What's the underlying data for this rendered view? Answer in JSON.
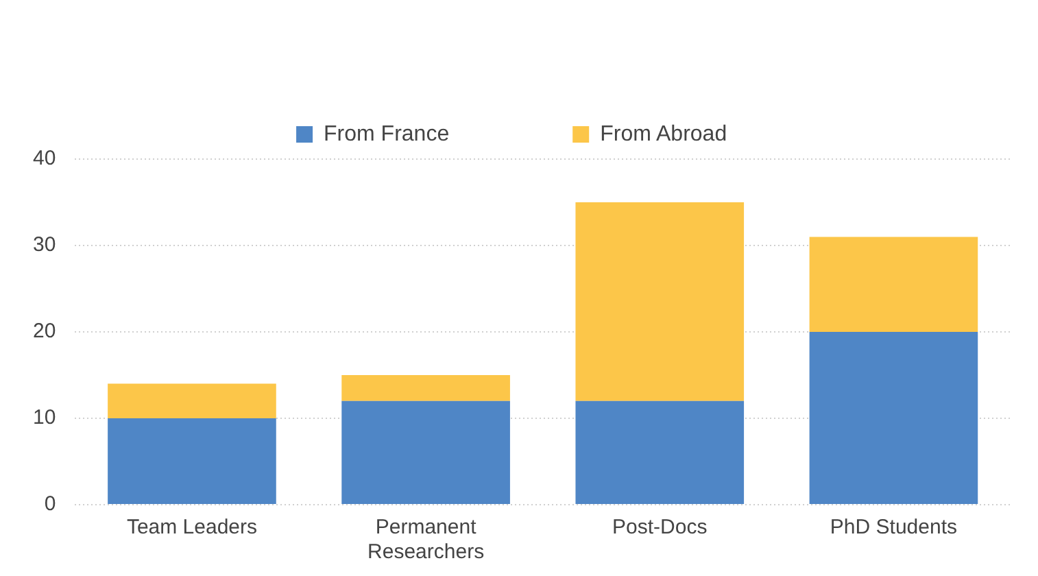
{
  "chart_data": {
    "type": "bar",
    "stacked": true,
    "categories": [
      "Team Leaders",
      "Permanent Researchers",
      "Post-Docs",
      "PhD Students"
    ],
    "series": [
      {
        "name": "From France",
        "color": "#4f86c6",
        "values": [
          10,
          12,
          12,
          20
        ]
      },
      {
        "name": "From Abroad",
        "color": "#fcc649",
        "values": [
          4,
          3,
          23,
          11
        ]
      }
    ],
    "ylim": [
      0,
      40
    ],
    "yticks": [
      0,
      10,
      20,
      30,
      40
    ],
    "grid": "y",
    "legend": "top"
  }
}
